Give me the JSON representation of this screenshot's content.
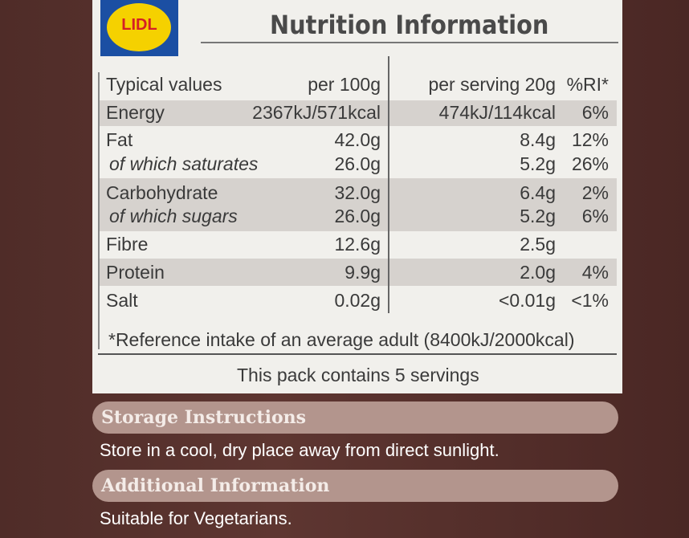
{
  "header": {
    "logo": "LIDL",
    "title": "Nutrition Information"
  },
  "table": {
    "rows": [
      [
        "Typical values",
        "per 100g",
        "per serving 20g",
        "%RI*"
      ],
      [
        "Energy",
        "2367kJ/571kcal",
        "474kJ/114kcal",
        "6%"
      ],
      [
        "Fat",
        "42.0g",
        "8.4g",
        "12%"
      ],
      [
        "of which saturates",
        "26.0g",
        "5.2g",
        "26%"
      ],
      [
        "Carbohydrate",
        "32.0g",
        "6.4g",
        "2%"
      ],
      [
        "of which sugars",
        "26.0g",
        "5.2g",
        "6%"
      ],
      [
        "Fibre",
        "12.6g",
        "2.5g",
        null
      ],
      [
        "Protein",
        "9.9g",
        "2.0g",
        "4%"
      ],
      [
        "Salt",
        "0.02g",
        "<0.01g",
        "<1%"
      ]
    ],
    "footnote": "*Reference intake of an average adult (8400kJ/2000kcal)",
    "servings": "This pack contains 5 servings"
  },
  "storage": {
    "heading": "Storage Instructions",
    "text": "Store in a cool, dry place away from direct sunlight."
  },
  "additional": {
    "heading": "Additional Information",
    "text": "Suitable for Vegetarians."
  }
}
